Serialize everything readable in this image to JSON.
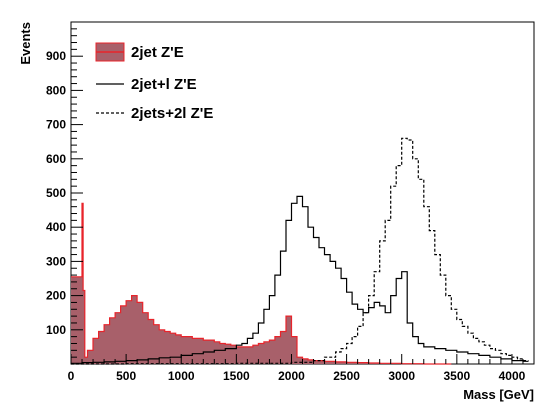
{
  "chart_data": {
    "type": "histogram",
    "xlabel": "Mass [GeV]",
    "ylabel": "Events",
    "xlim": [
      0,
      4200
    ],
    "ylim": [
      0,
      1000
    ],
    "x_ticks": [
      0,
      500,
      1000,
      1500,
      2000,
      2500,
      3000,
      3500,
      4000
    ],
    "y_ticks": [
      100,
      200,
      300,
      400,
      500,
      600,
      700,
      800,
      900
    ],
    "grid": false,
    "legend_position": "top-left",
    "series": [
      {
        "name": "2jet  Z'E",
        "style": "filled-step",
        "line_color": "#e8242b",
        "fill_color": "#a8606a",
        "x": [
          0,
          50,
          100,
          110,
          125,
          150,
          200,
          250,
          300,
          350,
          400,
          450,
          500,
          550,
          600,
          650,
          700,
          750,
          800,
          850,
          900,
          950,
          1000,
          1050,
          1100,
          1150,
          1200,
          1250,
          1300,
          1350,
          1400,
          1450,
          1500,
          1550,
          1600,
          1650,
          1700,
          1750,
          1800,
          1850,
          1900,
          1950,
          2000,
          2050,
          2100,
          2150,
          2200,
          2300,
          2400,
          2500,
          2600,
          2700,
          2800,
          2900,
          3000,
          3100,
          3200,
          3400
        ],
        "values": [
          255,
          255,
          470,
          215,
          20,
          40,
          75,
          95,
          115,
          135,
          150,
          170,
          185,
          200,
          180,
          150,
          130,
          115,
          100,
          95,
          90,
          85,
          80,
          80,
          75,
          75,
          70,
          70,
          65,
          60,
          58,
          55,
          50,
          50,
          50,
          55,
          60,
          65,
          70,
          80,
          95,
          140,
          80,
          20,
          15,
          12,
          10,
          8,
          6,
          5,
          4,
          3,
          2,
          2,
          1,
          1,
          0,
          0
        ]
      },
      {
        "name": "2jet+l Z'E",
        "style": "solid-step",
        "line_color": "#000000",
        "x": [
          0,
          100,
          200,
          300,
          400,
          500,
          600,
          700,
          800,
          900,
          1000,
          1100,
          1200,
          1300,
          1400,
          1500,
          1550,
          1600,
          1650,
          1700,
          1750,
          1800,
          1850,
          1900,
          1950,
          2000,
          2050,
          2100,
          2150,
          2200,
          2250,
          2300,
          2350,
          2400,
          2450,
          2500,
          2550,
          2600,
          2650,
          2700,
          2750,
          2800,
          2850,
          2900,
          2950,
          3000,
          3050,
          3100,
          3150,
          3200,
          3300,
          3400,
          3500,
          3600,
          3700,
          3800,
          3900,
          4000,
          4100
        ],
        "values": [
          2,
          4,
          5,
          6,
          8,
          10,
          12,
          15,
          18,
          20,
          25,
          30,
          35,
          40,
          45,
          55,
          60,
          75,
          90,
          120,
          160,
          200,
          260,
          330,
          420,
          470,
          490,
          460,
          400,
          370,
          340,
          320,
          300,
          280,
          250,
          210,
          175,
          160,
          150,
          165,
          180,
          170,
          150,
          200,
          250,
          270,
          120,
          80,
          60,
          50,
          45,
          40,
          35,
          30,
          25,
          20,
          15,
          10,
          8
        ]
      },
      {
        "name": "2jets+2l Z'E",
        "style": "dashed-step",
        "line_color": "#000000",
        "x": [
          0,
          500,
          1000,
          1500,
          2000,
          2200,
          2300,
          2400,
          2450,
          2500,
          2550,
          2600,
          2650,
          2700,
          2750,
          2800,
          2850,
          2900,
          2950,
          3000,
          3050,
          3100,
          3150,
          3200,
          3250,
          3300,
          3350,
          3400,
          3450,
          3500,
          3550,
          3600,
          3650,
          3700,
          3750,
          3800,
          3850,
          3900,
          3950,
          4000,
          4050,
          4100
        ],
        "values": [
          0,
          1,
          1,
          2,
          5,
          10,
          20,
          35,
          45,
          60,
          80,
          110,
          150,
          200,
          270,
          360,
          420,
          520,
          580,
          660,
          655,
          600,
          540,
          460,
          390,
          320,
          260,
          200,
          160,
          130,
          110,
          90,
          75,
          65,
          55,
          45,
          40,
          30,
          25,
          20,
          15,
          10
        ]
      }
    ]
  }
}
